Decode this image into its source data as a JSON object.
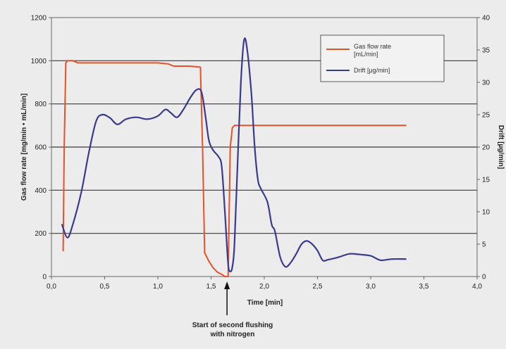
{
  "chart_data": {
    "type": "line",
    "xlabel": "Time [min]",
    "ylabel_left": "Gas flow rate [mg/min • mL/min]",
    "ylabel_right": "Drift [µg/min]",
    "xlim": [
      0,
      4
    ],
    "ylim_left": [
      0,
      1200
    ],
    "ylim_right": [
      0,
      40
    ],
    "x_ticks": [
      "0,0",
      "0,5",
      "1,0",
      "1,5",
      "2,0",
      "2,5",
      "3,0",
      "3,5",
      "4,0"
    ],
    "x_tick_values": [
      0,
      0.5,
      1,
      1.5,
      2,
      2.5,
      3,
      3.5,
      4
    ],
    "y_ticks_left": [
      "0",
      "200",
      "400",
      "600",
      "800",
      "1000",
      "1200"
    ],
    "y_tick_values_left": [
      0,
      200,
      400,
      600,
      800,
      1000,
      1200
    ],
    "y_ticks_right": [
      "0",
      "5",
      "10",
      "15",
      "20",
      "25",
      "30",
      "35",
      "40"
    ],
    "y_tick_values_right": [
      0,
      5,
      10,
      15,
      20,
      25,
      30,
      35,
      40
    ],
    "grid": "horizontal",
    "legend_position": "top-right",
    "series": [
      {
        "name": "Gas flow rate [mL/min]",
        "axis": "left",
        "color": "#e8502a",
        "points": [
          [
            0.11,
            120
          ],
          [
            0.12,
            600
          ],
          [
            0.135,
            990
          ],
          [
            0.15,
            1000
          ],
          [
            0.2,
            1000
          ],
          [
            0.25,
            990
          ],
          [
            0.5,
            990
          ],
          [
            1.0,
            990
          ],
          [
            1.1,
            985
          ],
          [
            1.15,
            975
          ],
          [
            1.3,
            975
          ],
          [
            1.4,
            970
          ],
          [
            1.42,
            600
          ],
          [
            1.44,
            110
          ],
          [
            1.48,
            70
          ],
          [
            1.52,
            40
          ],
          [
            1.56,
            20
          ],
          [
            1.6,
            10
          ],
          [
            1.63,
            0
          ],
          [
            1.66,
            0
          ],
          [
            1.68,
            600
          ],
          [
            1.7,
            690
          ],
          [
            1.72,
            700
          ],
          [
            2.0,
            700
          ],
          [
            2.5,
            700
          ],
          [
            3.0,
            700
          ],
          [
            3.33,
            700
          ]
        ]
      },
      {
        "name": "Drift [µg/min]",
        "axis": "right",
        "color": "#3a3a8e",
        "points": [
          [
            0.1,
            8
          ],
          [
            0.15,
            6
          ],
          [
            0.2,
            8
          ],
          [
            0.28,
            13
          ],
          [
            0.35,
            19
          ],
          [
            0.42,
            24
          ],
          [
            0.48,
            25
          ],
          [
            0.55,
            24.5
          ],
          [
            0.62,
            23.5
          ],
          [
            0.7,
            24.3
          ],
          [
            0.8,
            24.6
          ],
          [
            0.9,
            24.3
          ],
          [
            1.0,
            24.8
          ],
          [
            1.07,
            25.8
          ],
          [
            1.12,
            25.3
          ],
          [
            1.18,
            24.6
          ],
          [
            1.24,
            25.8
          ],
          [
            1.3,
            27.5
          ],
          [
            1.36,
            28.8
          ],
          [
            1.41,
            28.5
          ],
          [
            1.45,
            24.5
          ],
          [
            1.48,
            21
          ],
          [
            1.52,
            19.5
          ],
          [
            1.57,
            18.5
          ],
          [
            1.6,
            17
          ],
          [
            1.63,
            10
          ],
          [
            1.66,
            2
          ],
          [
            1.68,
            0.8
          ],
          [
            1.7,
            1.5
          ],
          [
            1.72,
            5
          ],
          [
            1.75,
            18
          ],
          [
            1.78,
            30
          ],
          [
            1.81,
            36.5
          ],
          [
            1.84,
            35
          ],
          [
            1.88,
            28
          ],
          [
            1.91,
            20
          ],
          [
            1.94,
            15
          ],
          [
            1.97,
            13.5
          ],
          [
            2.03,
            11.5
          ],
          [
            2.07,
            8
          ],
          [
            2.1,
            7
          ],
          [
            2.15,
            3
          ],
          [
            2.2,
            1.5
          ],
          [
            2.25,
            2.2
          ],
          [
            2.3,
            3.5
          ],
          [
            2.35,
            5
          ],
          [
            2.4,
            5.5
          ],
          [
            2.45,
            5
          ],
          [
            2.5,
            4
          ],
          [
            2.55,
            2.5
          ],
          [
            2.6,
            2.6
          ],
          [
            2.7,
            3
          ],
          [
            2.8,
            3.5
          ],
          [
            2.9,
            3.4
          ],
          [
            3.0,
            3.2
          ],
          [
            3.05,
            2.8
          ],
          [
            3.1,
            2.5
          ],
          [
            3.2,
            2.7
          ],
          [
            3.33,
            2.7
          ]
        ]
      }
    ],
    "legend": {
      "gas_line1": "Gas flow rate",
      "gas_line2": "[mL/min]",
      "drift": "Drift [µg/min]"
    },
    "annotation": {
      "x": 1.65,
      "line1": "Start of second flushing",
      "line2": "with nitrogen"
    }
  }
}
